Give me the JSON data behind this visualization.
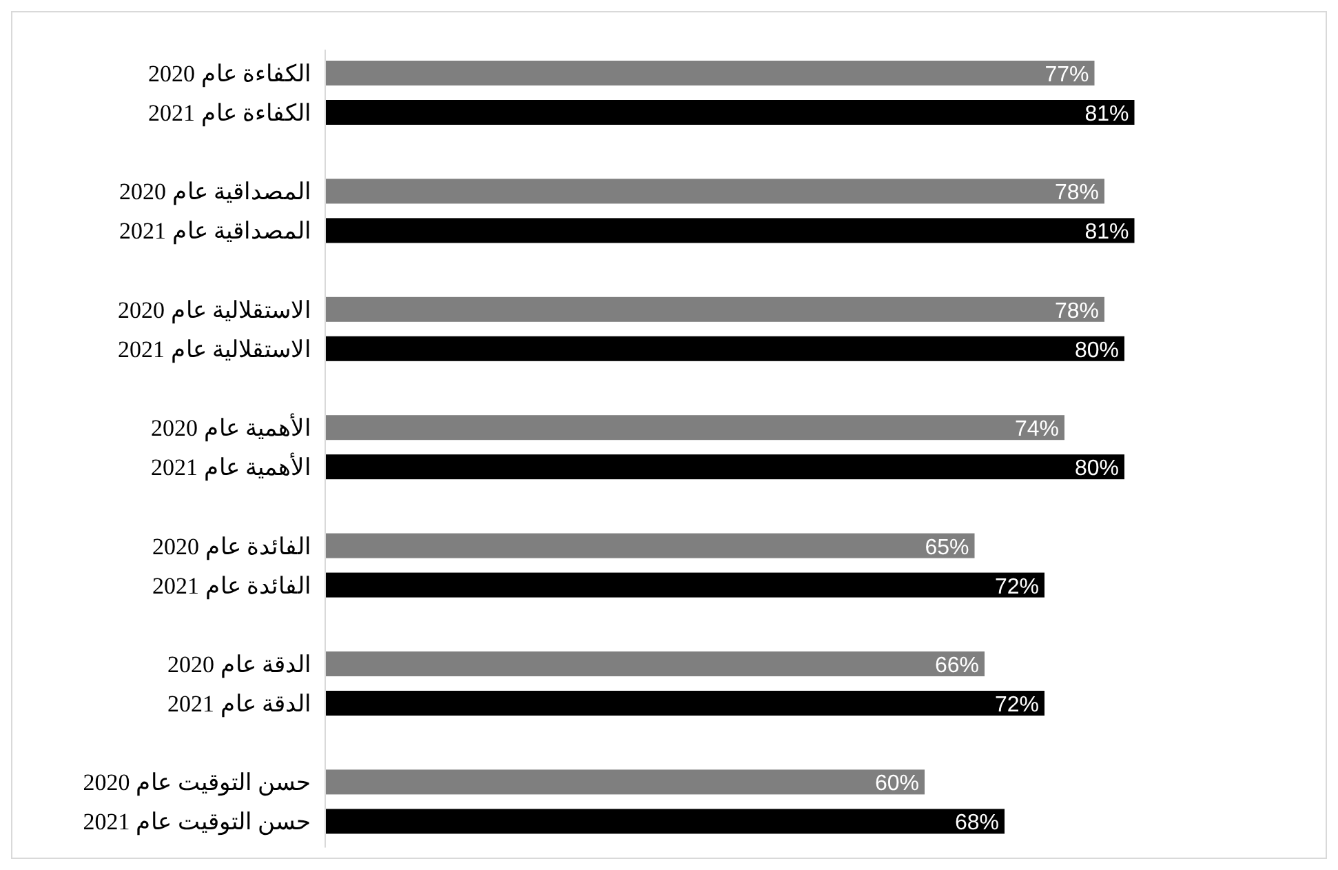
{
  "chart_data": {
    "type": "bar",
    "orientation": "horizontal",
    "categories": [
      "الكفاءة  عام 2020",
      "الكفاءة عام 2021",
      "المصداقية عام 2020",
      "المصداقية عام 2021",
      "الاستقلالية عام 2020",
      "الاستقلالية عام 2021",
      "الأهمية عام 2020",
      "الأهمية عام 2021",
      "الفائدة عام 2020",
      "الفائدة عام 2021",
      "الدقة عام 2020",
      "الدقة عام 2021",
      "حسن التوقيت عام 2020",
      "حسن التوقيت عام 2021"
    ],
    "values": [
      77,
      81,
      78,
      81,
      78,
      80,
      74,
      80,
      65,
      72,
      66,
      72,
      60,
      68
    ],
    "value_labels": [
      "77%",
      "81%",
      "78%",
      "81%",
      "78%",
      "80%",
      "74%",
      "80%",
      "65%",
      "72%",
      "66%",
      "72%",
      "60%",
      "68%"
    ],
    "colors": [
      "#7f7f7f",
      "#000000",
      "#7f7f7f",
      "#000000",
      "#7f7f7f",
      "#000000",
      "#7f7f7f",
      "#000000",
      "#7f7f7f",
      "#000000",
      "#7f7f7f",
      "#000000",
      "#7f7f7f",
      "#000000"
    ],
    "xlim": [
      0,
      100
    ],
    "tick_labels": "y"
  }
}
